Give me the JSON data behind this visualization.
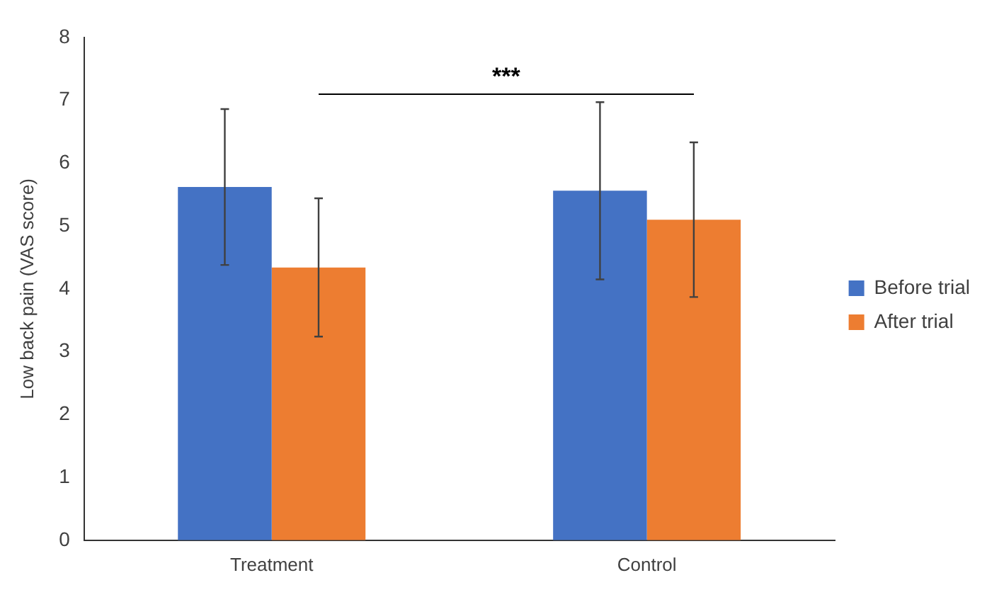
{
  "chart_data": {
    "type": "bar",
    "ylabel": "Low back pain (VAS score)",
    "categories": [
      "Treatment",
      "Control"
    ],
    "series": [
      {
        "name": "Before trial",
        "color": "#4472c4",
        "values": [
          5.62,
          5.56
        ],
        "errors": [
          1.24,
          1.41
        ]
      },
      {
        "name": "After trial",
        "color": "#ed7d31",
        "values": [
          4.34,
          5.1
        ],
        "errors": [
          1.1,
          1.23
        ]
      }
    ],
    "ylim": [
      0,
      8
    ],
    "yticks": [
      0,
      1,
      2,
      3,
      4,
      5,
      6,
      7,
      8
    ],
    "grid": false,
    "legend": "right",
    "annotations": [
      "***"
    ]
  }
}
